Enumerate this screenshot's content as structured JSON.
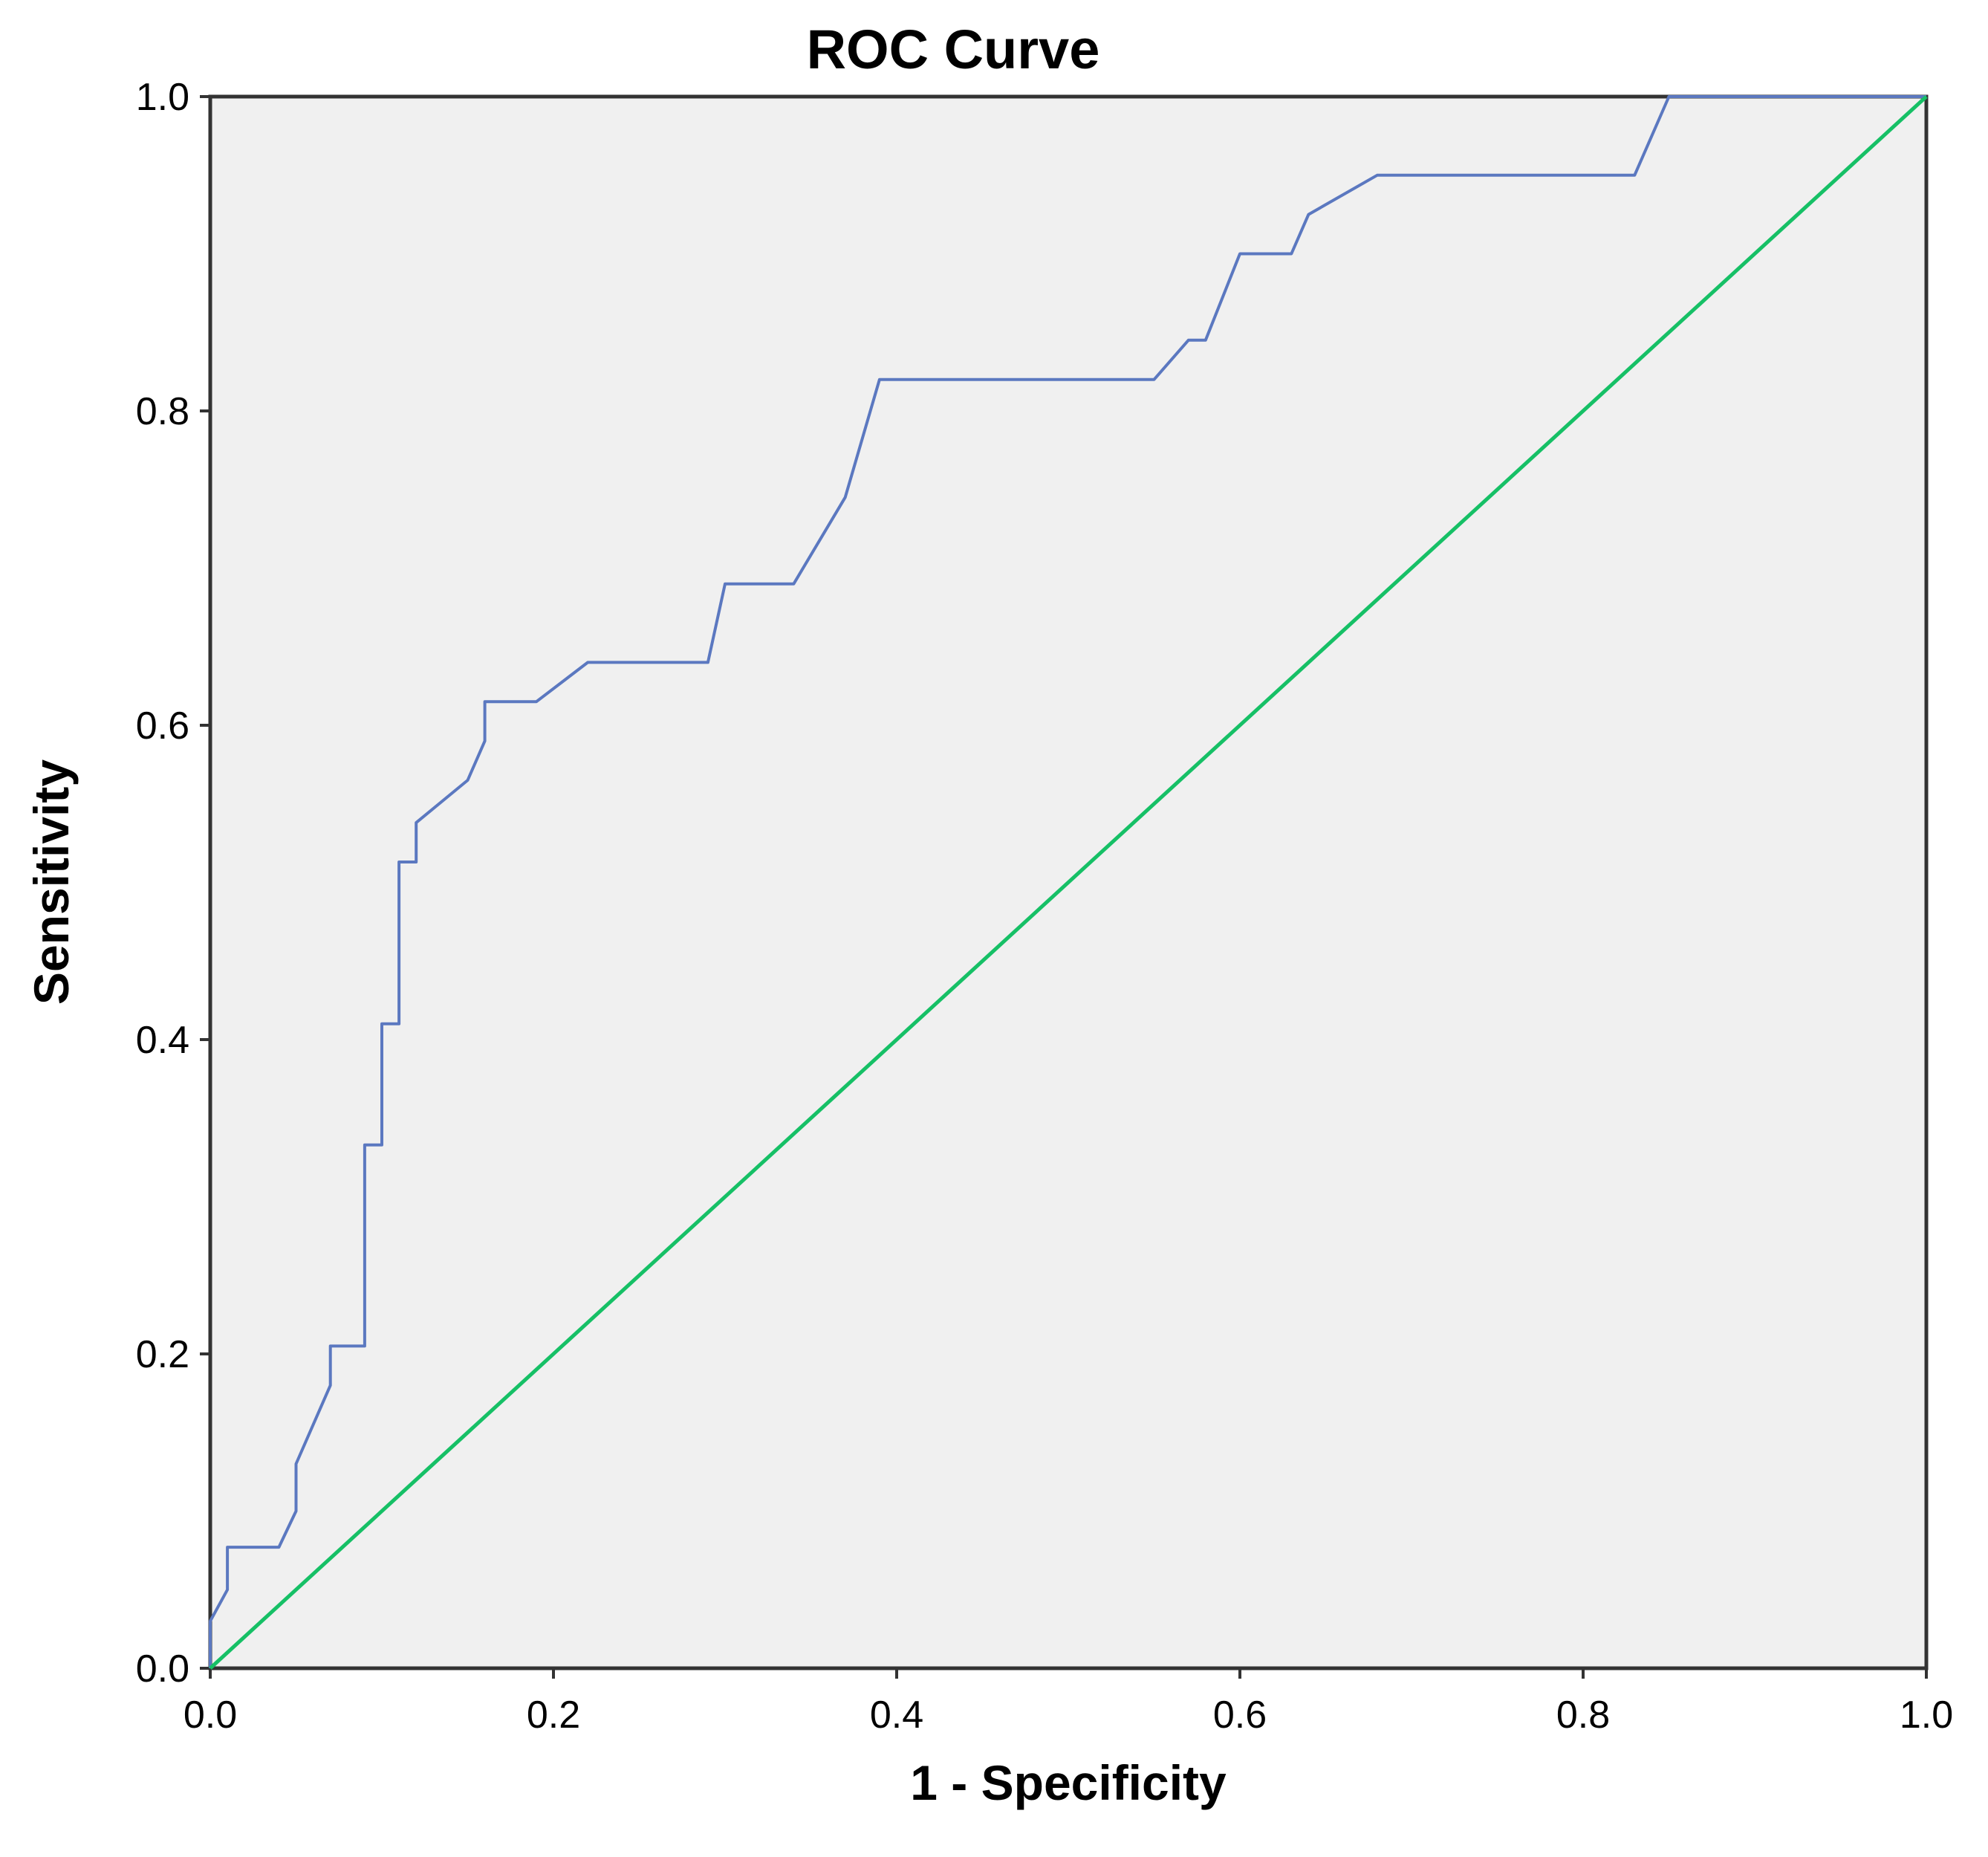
{
  "chart_data": {
    "type": "line",
    "title": "ROC Curve",
    "xlabel": "1 - Specificity",
    "ylabel": "Sensitivity",
    "xlim": [
      0.0,
      1.0
    ],
    "ylim": [
      0.0,
      1.0
    ],
    "x_ticks": [
      "0.0",
      "0.2",
      "0.4",
      "0.6",
      "0.8",
      "1.0"
    ],
    "y_ticks": [
      "0.0",
      "0.2",
      "0.4",
      "0.6",
      "0.8",
      "1.0"
    ],
    "grid": false,
    "background_color": "#f0f0f0",
    "series": [
      {
        "color": "#5b78c0",
        "x": [
          0.0,
          0.0,
          0.01,
          0.01,
          0.04,
          0.05,
          0.05,
          0.07,
          0.07,
          0.09,
          0.09,
          0.1,
          0.1,
          0.11,
          0.11,
          0.12,
          0.12,
          0.15,
          0.16,
          0.16,
          0.19,
          0.22,
          0.29,
          0.3,
          0.34,
          0.37,
          0.39,
          0.55,
          0.57,
          0.58,
          0.6,
          0.63,
          0.64,
          0.68,
          0.83,
          0.85,
          1.0
        ],
        "y": [
          0.0,
          0.03,
          0.05,
          0.077,
          0.077,
          0.1,
          0.13,
          0.18,
          0.205,
          0.205,
          0.333,
          0.333,
          0.41,
          0.41,
          0.513,
          0.513,
          0.538,
          0.565,
          0.59,
          0.615,
          0.615,
          0.64,
          0.64,
          0.69,
          0.69,
          0.745,
          0.82,
          0.82,
          0.845,
          0.845,
          0.9,
          0.9,
          0.925,
          0.95,
          0.95,
          1.0,
          1.0
        ]
      },
      {
        "color": "#16c066",
        "x": [
          0.0,
          1.0
        ],
        "y": [
          0.0,
          1.0
        ]
      }
    ]
  }
}
